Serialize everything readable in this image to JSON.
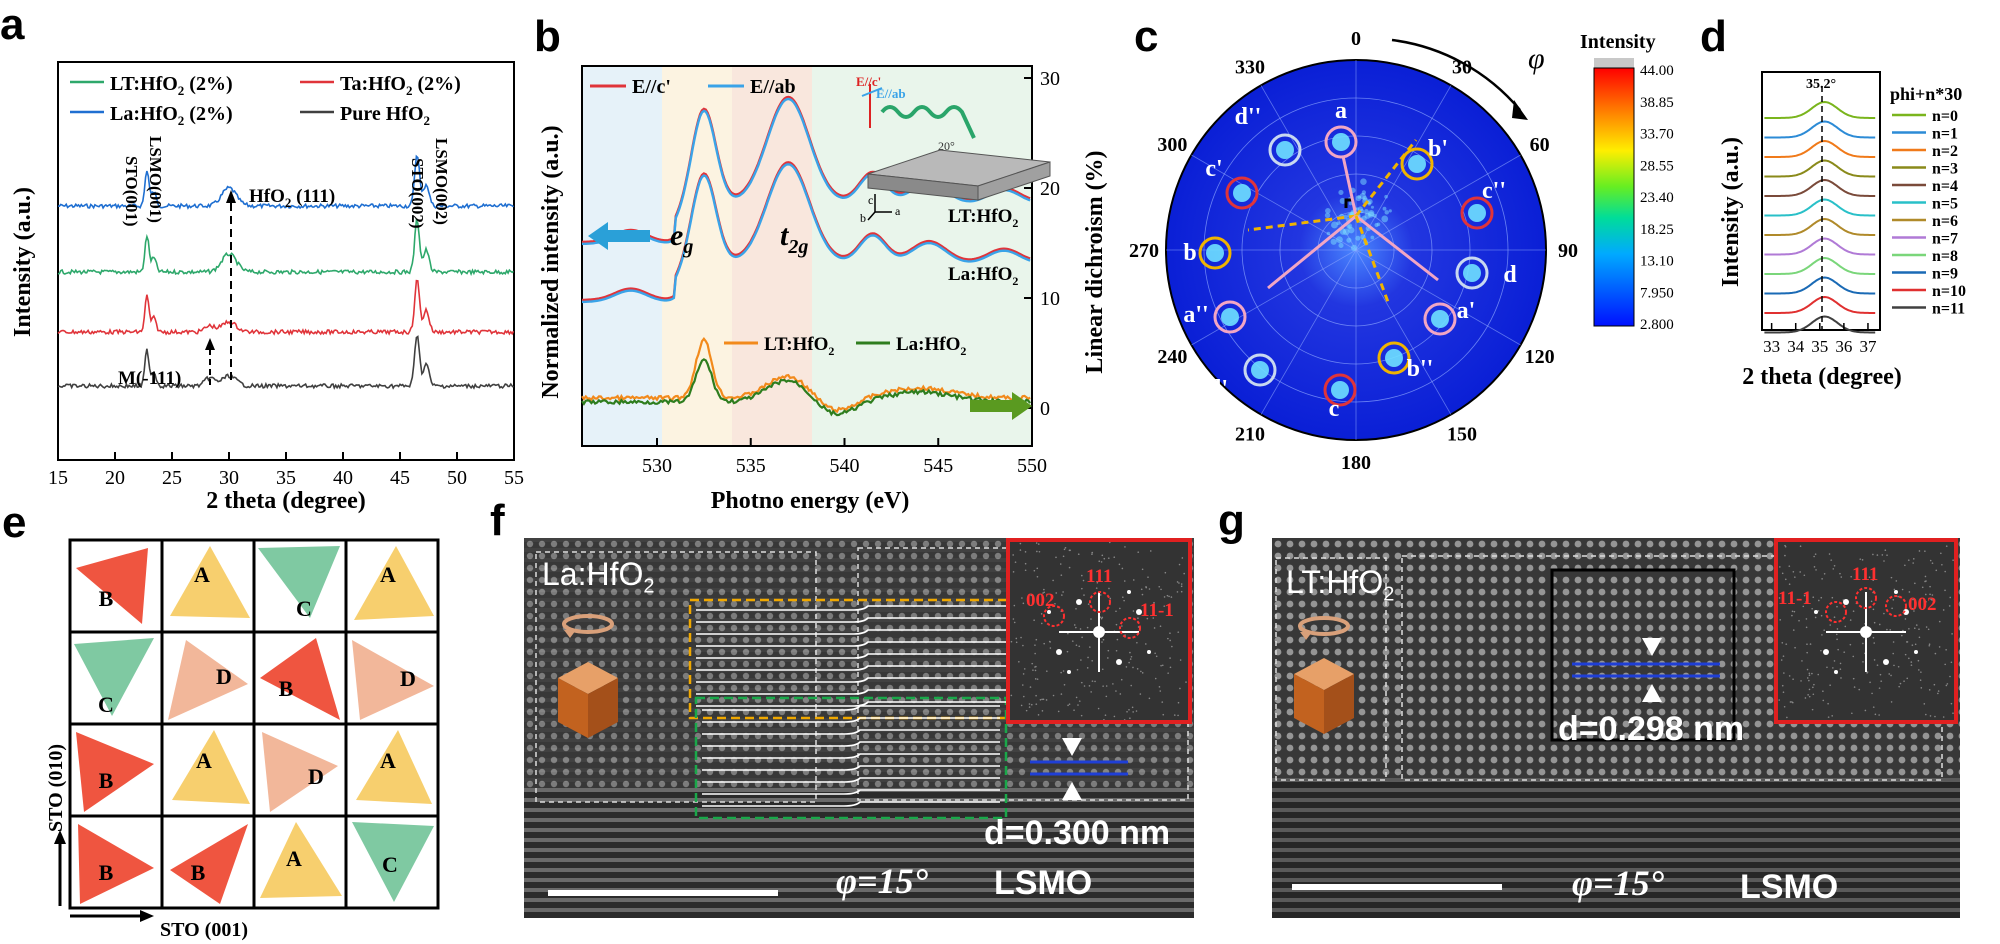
{
  "labels": {
    "a": "a",
    "b": "b",
    "c": "c",
    "d": "d",
    "e": "e",
    "f": "f",
    "g": "g"
  },
  "colors": {
    "blue": "#1f6fd1",
    "green": "#2ea86b",
    "red": "#e0343a",
    "black": "#404040",
    "orange": "#f28a1c",
    "dgreen": "#2e7d1e",
    "lightblue": "#3aa3e8"
  },
  "panel_a": {
    "xlabel": "2 theta (degree)",
    "ylabel": "Intensity (a.u.)",
    "xticks": [
      "15",
      "20",
      "25",
      "30",
      "35",
      "40",
      "45",
      "50",
      "55"
    ],
    "legend": {
      "lt": "LT:HfO",
      "ta": "Ta:HfO",
      "la": "La:HfO",
      "pure": "Pure HfO",
      "sub2": "2",
      "pct": " (2%)"
    },
    "annot": {
      "sto001": "STO(001)",
      "lsmo001": "LSMO(001)",
      "hfo111": "HfO",
      "hfo111b": " (111)",
      "sto002": "STO(002)",
      "lsmo002": "LSMO(002)",
      "m111": "M(-111)"
    }
  },
  "panel_b": {
    "xlabel": "Photno energy (eV)",
    "ylabel": "Normalized intensity (a.u.)",
    "y2label": "Linear dichroism (%)",
    "xticks": [
      "530",
      "535",
      "540",
      "545",
      "550"
    ],
    "y2ticks": [
      "0",
      "10",
      "20",
      "30"
    ],
    "legend": {
      "ec": "E//c'",
      "eab": "E//ab",
      "lt": "LT:HfO",
      "la": "La:HfO",
      "sub2": "2"
    },
    "annot": {
      "eg": "e",
      "egs": "g",
      "t2g": "t",
      "t2gs": "2g",
      "lt": "LT:HfO",
      "la": "La:HfO",
      "angle": "20°",
      "cc": "c",
      "bb": "b",
      "aa": "a",
      "ec_small": "E//c'",
      "eab_small": "E//ab"
    }
  },
  "panel_c": {
    "angles": [
      "0",
      "30",
      "60",
      "90",
      "120",
      "150",
      "180",
      "210",
      "240",
      "270",
      "300",
      "330"
    ],
    "phi": "φ",
    "colorbar_title": "Intensity",
    "colorbar_ticks": [
      "44.00",
      "38.85",
      "33.70",
      "28.55",
      "23.40",
      "18.25",
      "13.10",
      "7.950",
      "2.800"
    ],
    "spots": [
      "a",
      "b'",
      "c''",
      "d",
      "a'",
      "b''",
      "c",
      "d'",
      "a''",
      "b",
      "c'",
      "d''"
    ]
  },
  "panel_d": {
    "xlabel": "2 theta (degree)",
    "ylabel": "Intensity (a.u.)",
    "peak": "35.2°",
    "legend_title": "phi+n*30",
    "xticks": [
      "33",
      "34",
      "35",
      "36",
      "37"
    ],
    "series": [
      "n=0",
      "n=1",
      "n=2",
      "n=3",
      "n=4",
      "n=5",
      "n=6",
      "n=7",
      "n=8",
      "n=9",
      "n=10",
      "n=11"
    ],
    "series_colors": [
      "#7ab51d",
      "#2c8bd6",
      "#f07a1a",
      "#8a8a1a",
      "#7a4a3a",
      "#29c0c8",
      "#b08a2a",
      "#b07ad6",
      "#7ad67a",
      "#1a6ab5",
      "#e03030",
      "#404040"
    ]
  },
  "panel_e": {
    "xlabel": "STO (001)",
    "ylabel": "STO (010)",
    "cells": [
      "B",
      "A",
      "C",
      "A",
      "C",
      "D",
      "B",
      "D",
      "B",
      "A",
      "D",
      "A",
      "B",
      "B",
      "A",
      "C"
    ]
  },
  "panel_f": {
    "title": "La:HfO",
    "sub2": "2",
    "fft": [
      "002",
      "111",
      "11-1"
    ],
    "d": "d=0.300 nm",
    "phi": "φ=15°",
    "lsmo": "LSMO"
  },
  "panel_g": {
    "title": "LT:HfO",
    "sub2": "2",
    "fft": [
      "111",
      "11-1",
      "002"
    ],
    "d": "d=0.298 nm",
    "phi": "φ=15°",
    "lsmo": "LSMO"
  }
}
